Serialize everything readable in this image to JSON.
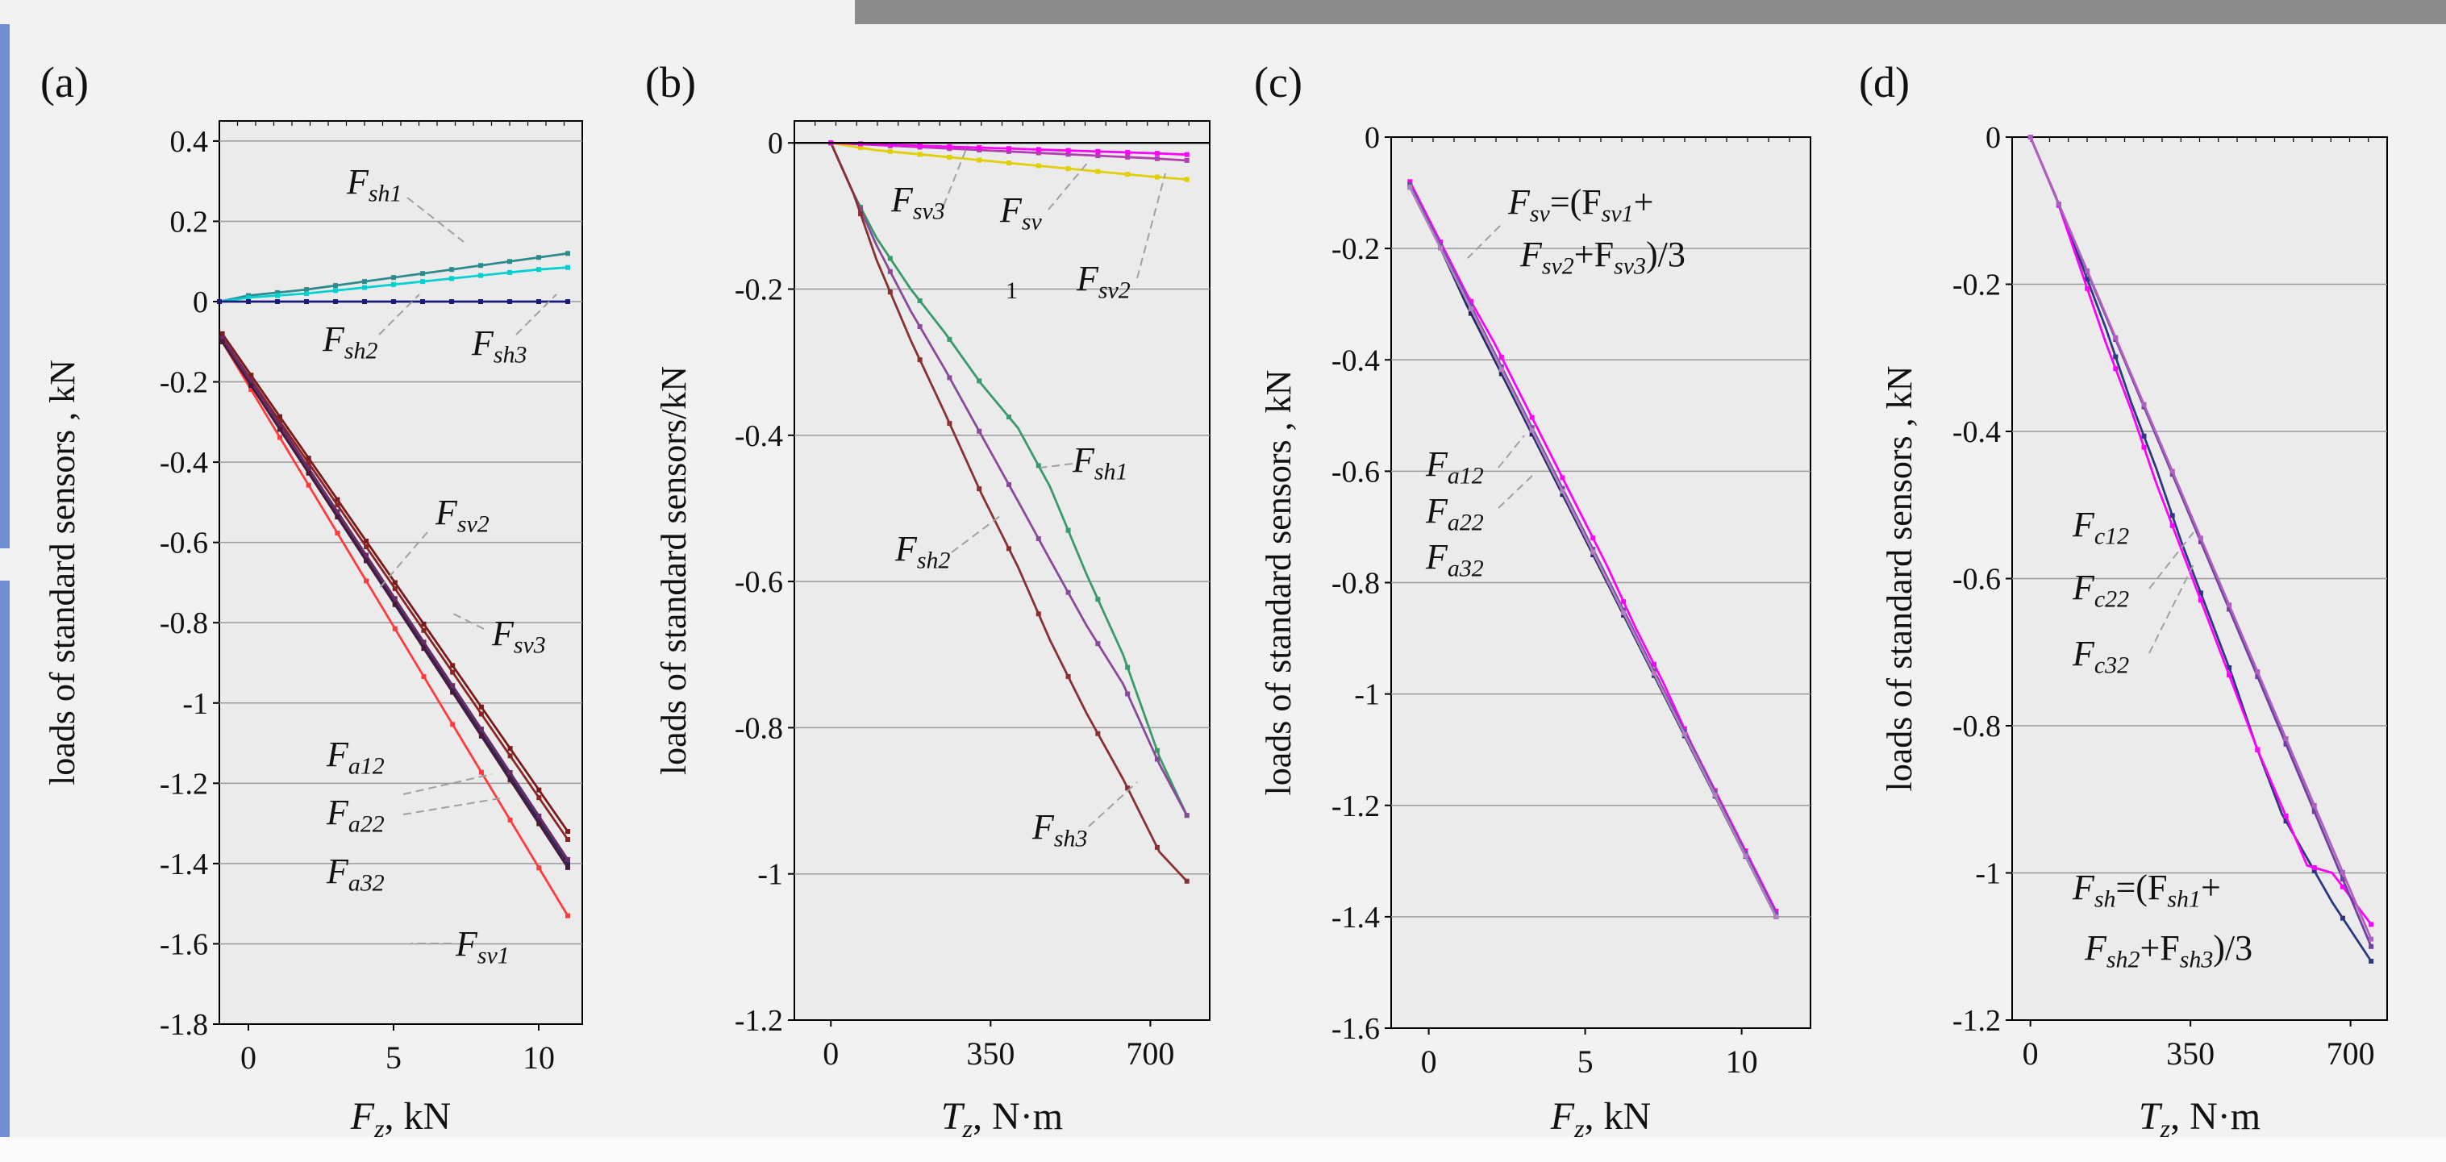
{
  "colors": {
    "background": "#f2f2f2",
    "panel": "#ebebeb",
    "grid": "#9a9a9a",
    "axis": "#000000",
    "leader": "#a0a0a0",
    "sidebar_blue": "#6e8fd6",
    "photo_strip": "#8c8c8c"
  },
  "chart_data": [
    {
      "type": "line",
      "panel_label": "(a)",
      "xlabel_main": "F",
      "xlabel_sub": "z",
      "xlabel_tail": ", kN",
      "ylabel": "loads of standard sensors , kN",
      "xlim": [
        -1,
        11.5
      ],
      "ylim": [
        -1.8,
        0.45
      ],
      "xticks": [
        0,
        5,
        10
      ],
      "xtick_labels": [
        "0",
        "5",
        "10"
      ],
      "yticks": [
        0.4,
        0.2,
        0,
        -0.2,
        -0.4,
        -0.6,
        -0.8,
        -1,
        -1.2,
        -1.4,
        -1.6,
        -1.8
      ],
      "ytick_labels": [
        "0.4",
        "0.2",
        "0",
        "-0.2",
        "-0.4",
        "-0.6",
        "-0.8",
        "-1",
        "-1.2",
        "-1.4",
        "-1.6",
        "-1.8"
      ],
      "grid": "horizontal",
      "series": [
        {
          "name": "Fsv1",
          "color": "#ff3b3b",
          "x": [
            -0.9,
            11
          ],
          "y": [
            -0.1,
            -1.53
          ]
        },
        {
          "name": "Fsv2",
          "color": "#7a1a1a",
          "x": [
            -0.9,
            11
          ],
          "y": [
            -0.08,
            -1.32
          ]
        },
        {
          "name": "Fsv3",
          "color": "#8b2525",
          "x": [
            -0.9,
            11
          ],
          "y": [
            -0.09,
            -1.34
          ]
        },
        {
          "name": "Fa12",
          "color": "#2a2a55",
          "x": [
            -0.9,
            11
          ],
          "y": [
            -0.1,
            -1.4
          ]
        },
        {
          "name": "Fa22",
          "color": "#6a2a6a",
          "x": [
            -0.9,
            11
          ],
          "y": [
            -0.09,
            -1.39
          ]
        },
        {
          "name": "Fa32",
          "color": "#4a1a3a",
          "x": [
            -0.9,
            11
          ],
          "y": [
            -0.1,
            -1.41
          ]
        },
        {
          "name": "Fsh1",
          "color": "#2e8b8b",
          "x": [
            -1,
            0,
            2,
            4,
            6,
            8,
            10,
            11
          ],
          "y": [
            0.0,
            0.015,
            0.03,
            0.05,
            0.07,
            0.09,
            0.11,
            0.12
          ]
        },
        {
          "name": "Fsh2",
          "color": "#00d0d0",
          "x": [
            -1,
            0,
            2,
            4,
            6,
            8,
            10,
            11
          ],
          "y": [
            0.0,
            0.01,
            0.02,
            0.035,
            0.05,
            0.065,
            0.08,
            0.085
          ]
        },
        {
          "name": "Fsh3",
          "color": "#1a1a7a",
          "x": [
            -1,
            11
          ],
          "y": [
            0.0,
            0.0
          ]
        }
      ],
      "annotations": [
        {
          "text": "F",
          "sub": "sh1"
        },
        {
          "text": "F",
          "sub": "sh2"
        },
        {
          "text": "F",
          "sub": "sh3"
        },
        {
          "text": "F",
          "sub": "sv2"
        },
        {
          "text": "F",
          "sub": "sv3"
        },
        {
          "text": "F",
          "sub": "a12"
        },
        {
          "text": "F",
          "sub": "a22"
        },
        {
          "text": "F",
          "sub": "a32"
        },
        {
          "text": "F",
          "sub": "sv1"
        }
      ]
    },
    {
      "type": "line",
      "panel_label": "(b)",
      "xlabel_main": "T",
      "xlabel_sub": "z",
      "xlabel_tail": ", N·m",
      "ylabel": "loads of standard sensors/kN",
      "xlim": [
        -80,
        830
      ],
      "ylim": [
        -1.2,
        0.03
      ],
      "xticks": [
        0,
        350,
        700
      ],
      "xtick_labels": [
        "0",
        "350",
        "700"
      ],
      "yticks": [
        0,
        -0.2,
        -0.4,
        -0.6,
        -0.8,
        -1,
        -1.2
      ],
      "ytick_labels": [
        "0",
        "-0.2",
        "-0.4",
        "-0.6",
        "-0.8",
        "-1",
        "-1.2"
      ],
      "grid": "horizontal",
      "series": [
        {
          "name": "Fsh1",
          "color": "#3a9a6a",
          "x": [
            0,
            50,
            100,
            175,
            250,
            330,
            410,
            480,
            560,
            640,
            720,
            780
          ],
          "y": [
            0.0,
            -0.07,
            -0.13,
            -0.2,
            -0.26,
            -0.33,
            -0.39,
            -0.47,
            -0.59,
            -0.7,
            -0.84,
            -0.92
          ]
        },
        {
          "name": "Fsh2",
          "color": "#8a4a9a",
          "x": [
            0,
            50,
            100,
            175,
            250,
            330,
            410,
            480,
            560,
            640,
            720,
            780
          ],
          "y": [
            0.0,
            -0.07,
            -0.14,
            -0.23,
            -0.31,
            -0.4,
            -0.49,
            -0.57,
            -0.66,
            -0.74,
            -0.85,
            -0.92
          ]
        },
        {
          "name": "Fsh3",
          "color": "#8a3030",
          "x": [
            0,
            50,
            100,
            175,
            250,
            330,
            410,
            480,
            560,
            640,
            720,
            780
          ],
          "y": [
            0.0,
            -0.07,
            -0.16,
            -0.27,
            -0.37,
            -0.48,
            -0.58,
            -0.68,
            -0.78,
            -0.87,
            -0.97,
            -1.01
          ]
        },
        {
          "name": "Fsv",
          "color": "#b040b0",
          "x": [
            0,
            100,
            200,
            300,
            400,
            500,
            600,
            700,
            780
          ],
          "y": [
            0.0,
            -0.003,
            -0.006,
            -0.009,
            -0.012,
            -0.015,
            -0.018,
            -0.021,
            -0.024
          ]
        },
        {
          "name": "Fsv2",
          "color": "#e0d000",
          "x": [
            0,
            100,
            200,
            300,
            400,
            500,
            600,
            700,
            780
          ],
          "y": [
            0.0,
            -0.01,
            -0.016,
            -0.022,
            -0.028,
            -0.034,
            -0.04,
            -0.046,
            -0.05
          ]
        },
        {
          "name": "Fsv3",
          "color": "#ff00ff",
          "x": [
            0,
            100,
            200,
            300,
            400,
            500,
            600,
            700,
            780
          ],
          "y": [
            0.0,
            -0.002,
            -0.004,
            -0.006,
            -0.008,
            -0.01,
            -0.012,
            -0.014,
            -0.016
          ]
        },
        {
          "name": "",
          "color": "#000000",
          "x": [
            -80,
            830
          ],
          "y": [
            0.0,
            0.0
          ]
        }
      ],
      "annotations": [
        {
          "text": "F",
          "sub": "sv3"
        },
        {
          "text": "F",
          "sub": "sv"
        },
        {
          "text": "F",
          "sub": "sv2"
        },
        {
          "text": "1",
          "sub": ""
        },
        {
          "text": "F",
          "sub": "sh1"
        },
        {
          "text": "F",
          "sub": "sh2"
        },
        {
          "text": "F",
          "sub": "sh3"
        }
      ]
    },
    {
      "type": "line",
      "panel_label": "(c)",
      "xlabel_main": "F",
      "xlabel_sub": "z",
      "xlabel_tail": ", kN",
      "ylabel": "loads of standard sensors , kN",
      "xlim": [
        -1.2,
        12.2
      ],
      "ylim": [
        -1.6,
        0.0
      ],
      "xticks": [
        0,
        5,
        10
      ],
      "xtick_labels": [
        "0",
        "5",
        "10"
      ],
      "yticks": [
        0,
        -0.2,
        -0.4,
        -0.6,
        -0.8,
        -1,
        -1.2,
        -1.4,
        -1.6
      ],
      "ytick_labels": [
        "0",
        "-0.2",
        "-0.4",
        "-0.6",
        "-0.8",
        "-1",
        "-1.2",
        "-1.4",
        "-1.6"
      ],
      "grid": "horizontal",
      "series": [
        {
          "name": "Fsv",
          "color": "#ff00ff",
          "x": [
            -0.6,
            0.3,
            1.2,
            2.1,
            3.0,
            3.9,
            4.8,
            5.7,
            6.6,
            7.5,
            8.4,
            9.3,
            10.2,
            11.1
          ],
          "y": [
            -0.08,
            -0.18,
            -0.28,
            -0.37,
            -0.47,
            -0.57,
            -0.67,
            -0.77,
            -0.88,
            -0.98,
            -1.09,
            -1.19,
            -1.29,
            -1.39
          ]
        },
        {
          "name": "Fa12",
          "color": "#202a60",
          "x": [
            -0.6,
            0.3,
            1.2,
            2.1,
            3.0,
            3.9,
            4.8,
            5.7,
            6.6,
            7.5,
            8.4,
            9.3,
            10.2,
            11.1
          ],
          "y": [
            -0.09,
            -0.19,
            -0.3,
            -0.4,
            -0.5,
            -0.6,
            -0.7,
            -0.8,
            -0.9,
            -1.0,
            -1.1,
            -1.2,
            -1.3,
            -1.4
          ]
        },
        {
          "name": "Fa22",
          "color": "#7050a0",
          "x": [
            -0.6,
            11.1
          ],
          "y": [
            -0.085,
            -1.395
          ]
        },
        {
          "name": "Fa32",
          "color": "#b080c0",
          "x": [
            -0.6,
            11.1
          ],
          "y": [
            -0.09,
            -1.4
          ]
        }
      ],
      "annotations": [
        {
          "text": "F",
          "sub": "sv",
          "tail": "=(F",
          "sub2": "sv1",
          "tail2": "+"
        },
        {
          "text": "F",
          "sub": "sv2",
          "tail": "+F",
          "sub2": "sv3",
          "tail2": ")/3"
        },
        {
          "text": "F",
          "sub": "a12"
        },
        {
          "text": "F",
          "sub": "a22"
        },
        {
          "text": "F",
          "sub": "a32"
        }
      ]
    },
    {
      "type": "line",
      "panel_label": "(d)",
      "xlabel_main": "T",
      "xlabel_sub": "z",
      "xlabel_tail": ", N·m",
      "ylabel": "loads of standard sensors , kN",
      "xlim": [
        -40,
        780
      ],
      "ylim": [
        -1.2,
        0.0
      ],
      "xticks": [
        0,
        350,
        700
      ],
      "xtick_labels": [
        "0",
        "350",
        "700"
      ],
      "yticks": [
        0,
        -0.2,
        -0.4,
        -0.6,
        -0.8,
        -1,
        -1.2
      ],
      "ytick_labels": [
        "0",
        "-0.2",
        "-0.4",
        "-0.6",
        "-0.8",
        "-1",
        "-1.2"
      ],
      "grid": "horizontal",
      "series": [
        {
          "name": "Fsh",
          "color": "#2a3a80",
          "x": [
            0,
            55,
            110,
            165,
            220,
            275,
            330,
            385,
            440,
            495,
            550,
            605,
            660,
            745
          ],
          "y": [
            0.0,
            -0.08,
            -0.17,
            -0.26,
            -0.36,
            -0.45,
            -0.55,
            -0.64,
            -0.73,
            -0.83,
            -0.92,
            -0.98,
            -1.04,
            -1.12
          ]
        },
        {
          "name": "Fc12",
          "color": "#ff00ff",
          "x": [
            0,
            55,
            110,
            165,
            220,
            275,
            330,
            385,
            440,
            495,
            550,
            605,
            660,
            745
          ],
          "y": [
            0.0,
            -0.08,
            -0.18,
            -0.28,
            -0.37,
            -0.47,
            -0.56,
            -0.65,
            -0.74,
            -0.83,
            -0.91,
            -0.99,
            -1.0,
            -1.07
          ]
        },
        {
          "name": "Fc22",
          "color": "#7040a0",
          "x": [
            0,
            745
          ],
          "y": [
            0.0,
            -1.1
          ]
        },
        {
          "name": "Fc32",
          "color": "#b060c0",
          "x": [
            0,
            745
          ],
          "y": [
            0.0,
            -1.09
          ]
        }
      ],
      "annotations": [
        {
          "text": "F",
          "sub": "c12"
        },
        {
          "text": "F",
          "sub": "c22"
        },
        {
          "text": "F",
          "sub": "c32"
        },
        {
          "text": "F",
          "sub": "sh",
          "tail": "=(F",
          "sub2": "sh1",
          "tail2": "+"
        },
        {
          "text": "F",
          "sub": "sh2",
          "tail": "+F",
          "sub2": "sh3",
          "tail2": ")/3"
        }
      ]
    }
  ]
}
